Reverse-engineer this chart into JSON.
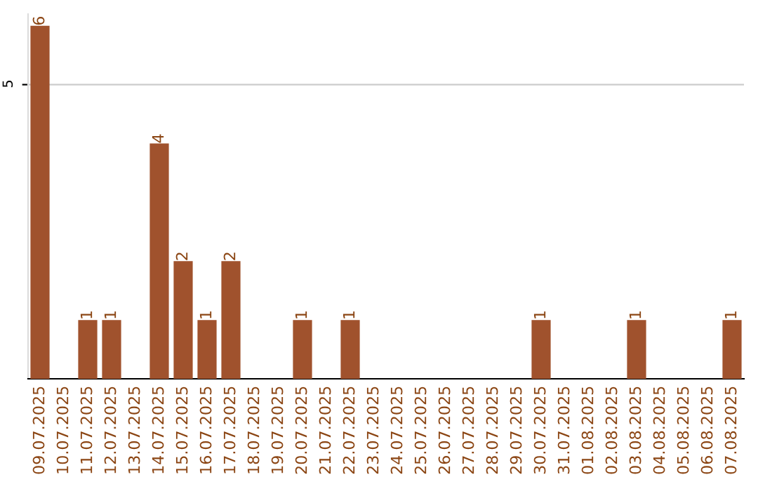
{
  "chart_data": {
    "type": "bar",
    "categories": [
      "09.07.2025",
      "10.07.2025",
      "11.07.2025",
      "12.07.2025",
      "13.07.2025",
      "14.07.2025",
      "15.07.2025",
      "16.07.2025",
      "17.07.2025",
      "18.07.2025",
      "19.07.2025",
      "20.07.2025",
      "21.07.2025",
      "22.07.2025",
      "23.07.2025",
      "24.07.2025",
      "25.07.2025",
      "26.07.2025",
      "27.07.2025",
      "28.07.2025",
      "29.07.2025",
      "30.07.2025",
      "31.07.2025",
      "01.08.2025",
      "02.08.2025",
      "03.08.2025",
      "04.08.2025",
      "05.08.2025",
      "06.08.2025",
      "07.08.2025"
    ],
    "values": [
      6,
      0,
      1,
      1,
      0,
      4,
      2,
      1,
      2,
      0,
      0,
      1,
      0,
      1,
      0,
      0,
      0,
      0,
      0,
      0,
      0,
      1,
      0,
      0,
      0,
      1,
      0,
      0,
      0,
      1
    ],
    "value_labels": [
      "6",
      null,
      "1",
      "1",
      null,
      "4",
      "2",
      "1",
      "2",
      null,
      null,
      "1",
      null,
      "1",
      null,
      null,
      null,
      null,
      null,
      null,
      null,
      "1",
      null,
      null,
      null,
      "1",
      null,
      null,
      null,
      "1"
    ],
    "color": "#a0522d",
    "ylim": [
      0,
      6.2
    ],
    "yticks": [
      5
    ],
    "grid": "y"
  }
}
